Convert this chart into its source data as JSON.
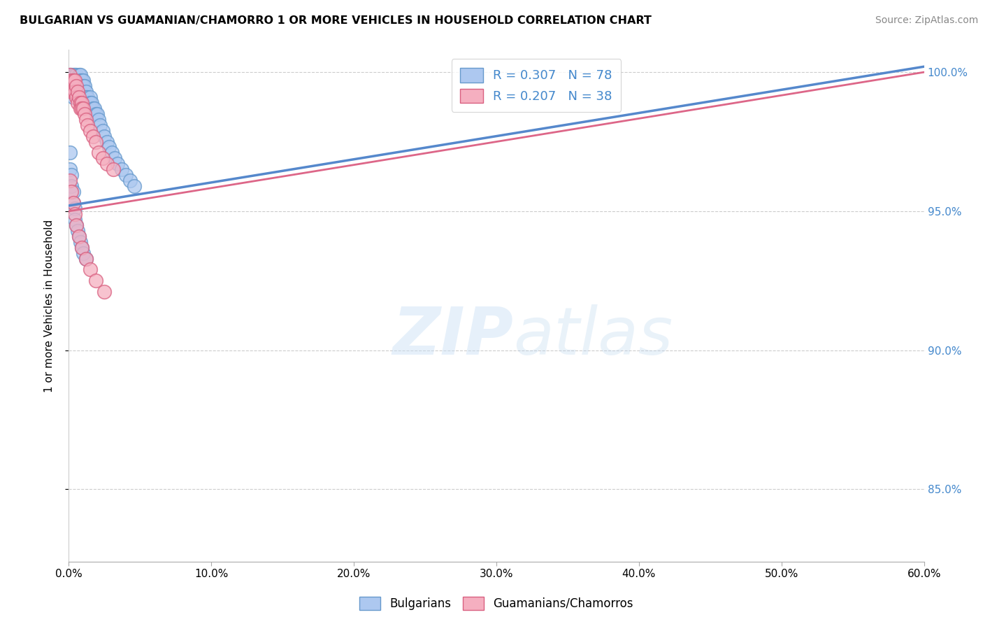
{
  "title": "BULGARIAN VS GUAMANIAN/CHAMORRO 1 OR MORE VEHICLES IN HOUSEHOLD CORRELATION CHART",
  "source": "Source: ZipAtlas.com",
  "ylabel_label": "1 or more Vehicles in Household",
  "legend_labels": [
    "Bulgarians",
    "Guamanians/Chamorros"
  ],
  "legend_r_blue": "R = 0.307",
  "legend_n_blue": "N = 78",
  "legend_r_pink": "R = 0.207",
  "legend_n_pink": "N = 38",
  "blue_fill": "#adc8f0",
  "pink_fill": "#f5afc0",
  "blue_edge": "#6699cc",
  "pink_edge": "#d96080",
  "blue_line": "#5588cc",
  "pink_line": "#dd6688",
  "grid_color": "#cccccc",
  "watermark_color": "#ddeeff",
  "xmin": 0.0,
  "xmax": 0.6,
  "ymin": 0.824,
  "ymax": 1.008,
  "ytick_positions": [
    0.85,
    0.9,
    0.95,
    1.0
  ],
  "xtick_positions": [
    0.0,
    0.1,
    0.2,
    0.3,
    0.4,
    0.5,
    0.6
  ],
  "blue_trend_x0": 0.0,
  "blue_trend_y0": 0.952,
  "blue_trend_x1": 0.6,
  "blue_trend_y1": 1.002,
  "pink_trend_x0": 0.0,
  "pink_trend_y0": 0.95,
  "pink_trend_x1": 0.6,
  "pink_trend_y1": 1.0,
  "blue_x": [
    0.001,
    0.001,
    0.001,
    0.002,
    0.002,
    0.002,
    0.002,
    0.003,
    0.003,
    0.003,
    0.003,
    0.003,
    0.004,
    0.004,
    0.004,
    0.004,
    0.005,
    0.005,
    0.005,
    0.005,
    0.006,
    0.006,
    0.006,
    0.007,
    0.007,
    0.007,
    0.007,
    0.008,
    0.008,
    0.008,
    0.008,
    0.009,
    0.009,
    0.009,
    0.01,
    0.01,
    0.01,
    0.011,
    0.011,
    0.012,
    0.012,
    0.013,
    0.014,
    0.015,
    0.015,
    0.016,
    0.017,
    0.018,
    0.019,
    0.02,
    0.021,
    0.022,
    0.024,
    0.025,
    0.027,
    0.028,
    0.03,
    0.032,
    0.034,
    0.037,
    0.04,
    0.043,
    0.046,
    0.001,
    0.001,
    0.002,
    0.002,
    0.003,
    0.003,
    0.004,
    0.004,
    0.005,
    0.006,
    0.007,
    0.008,
    0.009,
    0.01,
    0.012
  ],
  "blue_y": [
    0.999,
    0.997,
    0.995,
    0.999,
    0.997,
    0.995,
    0.993,
    0.999,
    0.997,
    0.995,
    0.993,
    0.991,
    0.999,
    0.997,
    0.995,
    0.993,
    0.999,
    0.997,
    0.995,
    0.993,
    0.997,
    0.995,
    0.993,
    0.999,
    0.997,
    0.995,
    0.991,
    0.999,
    0.997,
    0.993,
    0.991,
    0.997,
    0.995,
    0.991,
    0.997,
    0.995,
    0.991,
    0.995,
    0.991,
    0.993,
    0.991,
    0.991,
    0.989,
    0.991,
    0.989,
    0.989,
    0.987,
    0.987,
    0.985,
    0.985,
    0.983,
    0.981,
    0.979,
    0.977,
    0.975,
    0.973,
    0.971,
    0.969,
    0.967,
    0.965,
    0.963,
    0.961,
    0.959,
    0.971,
    0.965,
    0.963,
    0.959,
    0.957,
    0.953,
    0.951,
    0.947,
    0.945,
    0.943,
    0.941,
    0.939,
    0.937,
    0.935,
    0.933
  ],
  "pink_x": [
    0.001,
    0.002,
    0.002,
    0.003,
    0.003,
    0.004,
    0.004,
    0.005,
    0.005,
    0.006,
    0.006,
    0.007,
    0.008,
    0.008,
    0.009,
    0.009,
    0.01,
    0.011,
    0.012,
    0.013,
    0.015,
    0.017,
    0.019,
    0.021,
    0.024,
    0.027,
    0.031,
    0.001,
    0.002,
    0.003,
    0.004,
    0.005,
    0.007,
    0.009,
    0.012,
    0.015,
    0.019,
    0.025
  ],
  "pink_y": [
    0.999,
    0.997,
    0.993,
    0.997,
    0.993,
    0.997,
    0.993,
    0.995,
    0.991,
    0.993,
    0.989,
    0.991,
    0.989,
    0.987,
    0.989,
    0.987,
    0.987,
    0.985,
    0.983,
    0.981,
    0.979,
    0.977,
    0.975,
    0.971,
    0.969,
    0.967,
    0.965,
    0.961,
    0.957,
    0.953,
    0.949,
    0.945,
    0.941,
    0.937,
    0.933,
    0.929,
    0.925,
    0.921
  ]
}
